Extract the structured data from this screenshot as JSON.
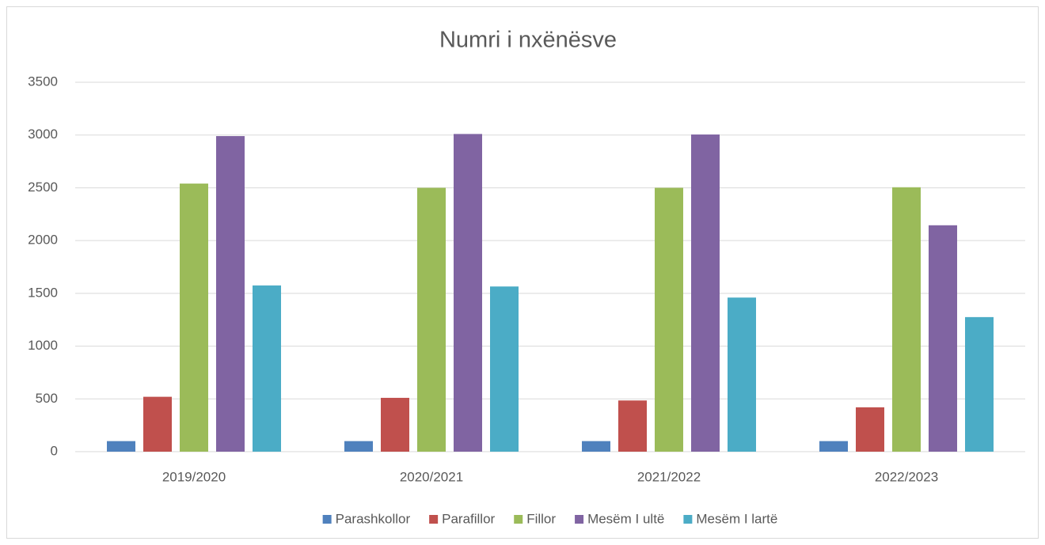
{
  "chart_data": {
    "type": "bar",
    "title": "Numri i nxënësve",
    "categories": [
      "2019/2020",
      "2020/2021",
      "2021/2022",
      "2022/2023"
    ],
    "series": [
      {
        "name": "Parashkollor",
        "color": "#4f81bd",
        "values": [
          100,
          100,
          100,
          100
        ]
      },
      {
        "name": "Parafillor",
        "color": "#c0504d",
        "values": [
          520,
          510,
          485,
          420
        ]
      },
      {
        "name": "Fillor",
        "color": "#9bbb59",
        "values": [
          2540,
          2500,
          2500,
          2505
        ]
      },
      {
        "name": "Mesëm I ultë",
        "color": "#8064a2",
        "values": [
          2990,
          3010,
          3005,
          2145
        ]
      },
      {
        "name": "Mesëm I lartë",
        "color": "#4bacc6",
        "values": [
          1575,
          1565,
          1460,
          1275
        ]
      }
    ],
    "ylim": [
      0,
      3500
    ],
    "yticks": [
      0,
      500,
      1000,
      1500,
      2000,
      2500,
      3000,
      3500
    ],
    "grid": true,
    "legend": "bottom"
  }
}
